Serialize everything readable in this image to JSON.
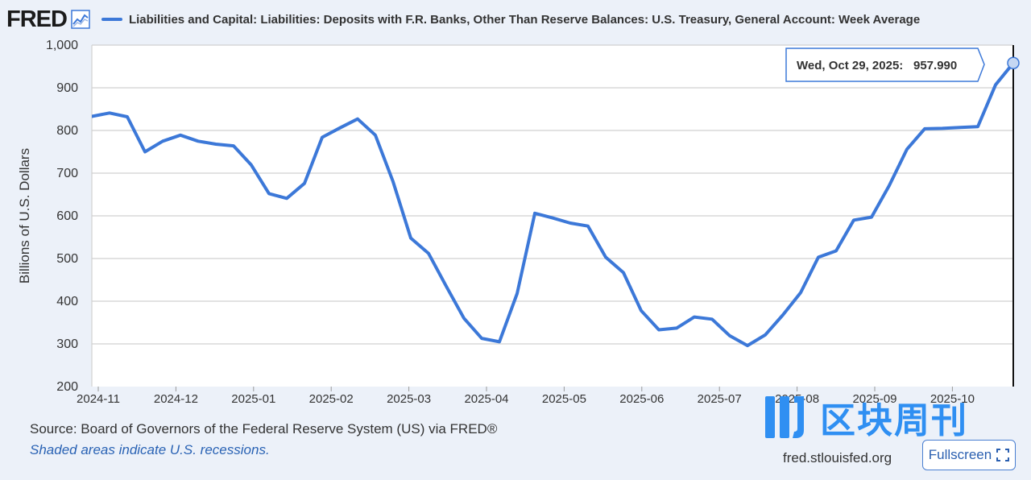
{
  "header": {
    "logo": "FRED",
    "series_title": "Liabilities and Capital: Liabilities: Deposits with F.R. Banks, Other Than Reserve Balances: U.S. Treasury, General Account: Week Average"
  },
  "chart_data": {
    "type": "line",
    "ylabel": "Billions of U.S. Dollars",
    "ylim": [
      200,
      1000
    ],
    "yticks": [
      200,
      300,
      400,
      500,
      600,
      700,
      800,
      900,
      1000
    ],
    "ytick_labels": [
      "200",
      "300",
      "400",
      "500",
      "600",
      "700",
      "800",
      "900",
      "1,000"
    ],
    "xticks": [
      "2024-11",
      "2024-12",
      "2025-01",
      "2025-02",
      "2025-03",
      "2025-04",
      "2025-05",
      "2025-06",
      "2025-07",
      "2025-08",
      "2025-09",
      "2025-10"
    ],
    "grid": true,
    "color": "#3c78d8",
    "series": [
      {
        "name": "U.S. Treasury, General Account: Week Average",
        "values": [
          833,
          841,
          832,
          750,
          775,
          789,
          775,
          768,
          764,
          719,
          652,
          641,
          676,
          784,
          806,
          827,
          789,
          680,
          548,
          512,
          435,
          360,
          313,
          305,
          418,
          606,
          595,
          583,
          576,
          503,
          467,
          378,
          333,
          337,
          363,
          358,
          319,
          296,
          321,
          368,
          420,
          503,
          518,
          590,
          597,
          671,
          756,
          804,
          805,
          807,
          809,
          907,
          958
        ]
      }
    ],
    "tooltip": {
      "date": "Wed, Oct 29, 2025:",
      "value": "957.990"
    }
  },
  "footer": {
    "source": "Source: Board of Governors of the Federal Reserve System (US) via FRED®",
    "recessions": "Shaded areas indicate U.S. recessions.",
    "site": "fred.stlouisfed.org",
    "fullscreen_label": "Fullscreen"
  },
  "watermark": {
    "text": "区块周刊"
  }
}
